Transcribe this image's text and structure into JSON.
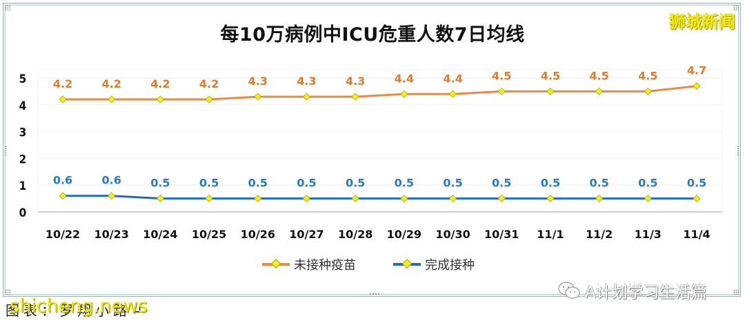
{
  "title": "每10万病例中ICU危重人数7日均线",
  "brand_watermark": "狮城新闻",
  "legend": [
    {
      "label": "未接种疫苗",
      "color": "#ed8a3f"
    },
    {
      "label": "完成接种",
      "color": "#1f6fba"
    }
  ],
  "wechat_watermark": "A计划学习生活篇",
  "caption": "图表：罗翔小路↵",
  "caption_overlay": "shicheng.news",
  "colors": {
    "unvaccinated": "#ed8a3f",
    "vaccinated": "#1f6fba",
    "unvaccinated_label": "#e07a2c",
    "vaccinated_label": "#2a7bc2",
    "marker_fill": "#f2ee1a",
    "gridline": "#eeeeee",
    "axis": "#bfbfbf"
  },
  "chart_data": {
    "type": "line",
    "title": "每10万病例中ICU危重人数7日均线",
    "xlabel": "",
    "ylabel": "",
    "categories": [
      "10/22",
      "10/23",
      "10/24",
      "10/25",
      "10/26",
      "10/27",
      "10/28",
      "10/29",
      "10/30",
      "10/31",
      "11/1",
      "11/2",
      "11/3",
      "11/4"
    ],
    "series": [
      {
        "name": "未接种疫苗",
        "values": [
          4.2,
          4.2,
          4.2,
          4.2,
          4.3,
          4.3,
          4.3,
          4.4,
          4.4,
          4.5,
          4.5,
          4.5,
          4.5,
          4.7
        ]
      },
      {
        "name": "完成接种",
        "values": [
          0.6,
          0.6,
          0.5,
          0.5,
          0.5,
          0.5,
          0.5,
          0.5,
          0.5,
          0.5,
          0.5,
          0.5,
          0.5,
          0.5
        ]
      }
    ],
    "yticks": [
      0,
      1,
      2,
      3,
      4,
      5
    ],
    "ylim": [
      0,
      5
    ],
    "grid": true,
    "legend_position": "bottom",
    "data_labels": true
  }
}
